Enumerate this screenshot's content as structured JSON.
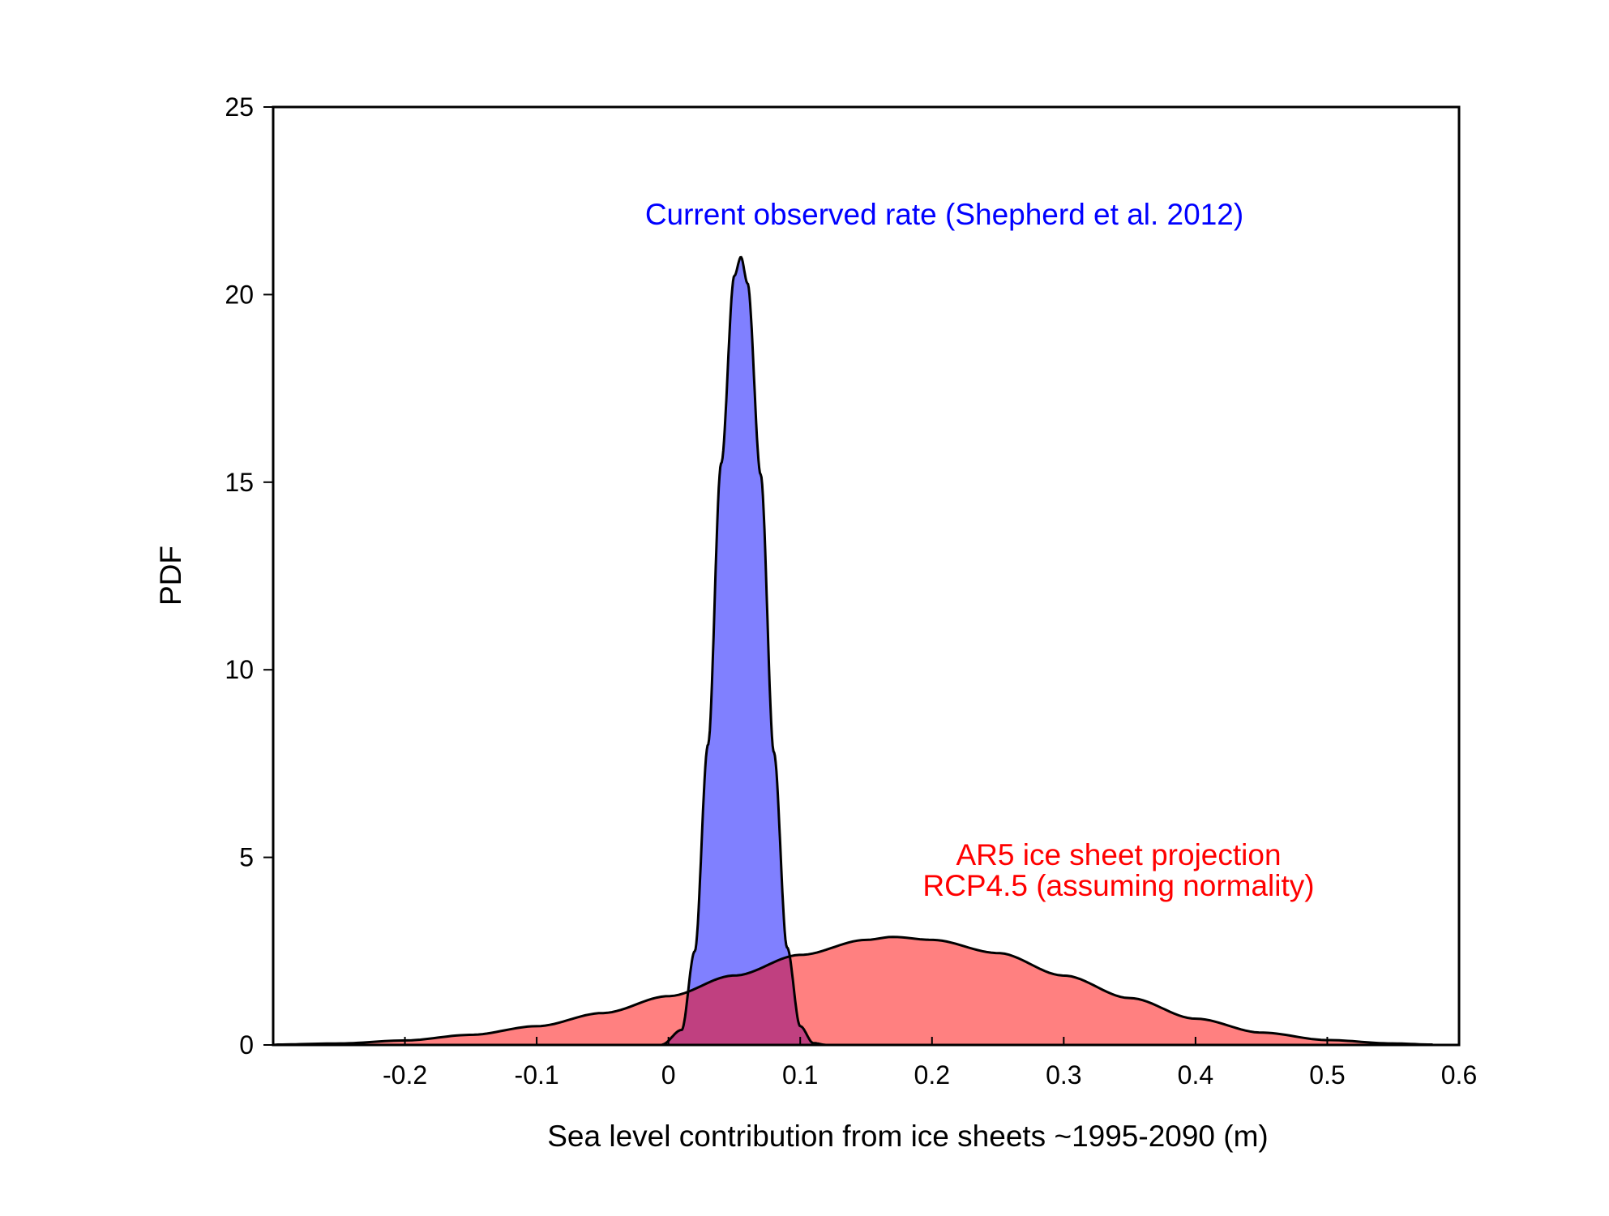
{
  "chart_data": {
    "type": "area",
    "xlabel": "Sea level contribution from ice sheets ~1995-2090 (m)",
    "ylabel": "PDF",
    "xlim": [
      -0.3,
      0.6
    ],
    "ylim": [
      0,
      25
    ],
    "xticks": [
      -0.2,
      -0.1,
      0,
      0.1,
      0.2,
      0.3,
      0.4,
      0.5,
      0.6
    ],
    "yticks": [
      0,
      5,
      10,
      15,
      20,
      25
    ],
    "x_tick_labels": [
      "-0.2",
      "-0.1",
      "0",
      "0.1",
      "0.2",
      "0.3",
      "0.4",
      "0.5",
      "0.6"
    ],
    "y_tick_labels": [
      "0",
      "5",
      "10",
      "15",
      "20",
      "25"
    ],
    "grid": false,
    "series": [
      {
        "fill_color": "#ff8080",
        "overlap_color": "#c04080",
        "x": [
          -0.3,
          -0.25,
          -0.2,
          -0.15,
          -0.1,
          -0.05,
          0,
          0.05,
          0.1,
          0.15,
          0.17,
          0.2,
          0.25,
          0.3,
          0.35,
          0.4,
          0.45,
          0.5,
          0.55,
          0.58
        ],
        "y": [
          0.01,
          0.04,
          0.12,
          0.27,
          0.5,
          0.85,
          1.3,
          1.85,
          2.4,
          2.8,
          2.88,
          2.8,
          2.45,
          1.85,
          1.25,
          0.7,
          0.33,
          0.13,
          0.04,
          0.01
        ]
      },
      {
        "fill_color": "#8080ff",
        "x": [
          -0.005,
          0.01,
          0.02,
          0.03,
          0.04,
          0.05,
          0.055,
          0.06,
          0.07,
          0.08,
          0.09,
          0.1,
          0.11,
          0.12
        ],
        "y": [
          0.01,
          0.4,
          2.5,
          8.0,
          15.5,
          20.5,
          21.0,
          20.3,
          15.2,
          7.8,
          2.6,
          0.5,
          0.05,
          0.0
        ]
      }
    ],
    "annotations": [
      {
        "text": "Current observed rate (Shepherd et al. 2012)",
        "color": "#0000ff"
      },
      {
        "text": "AR5 ice sheet projection",
        "color": "#ff0000"
      },
      {
        "text": "RCP4.5 (assuming normality)",
        "color": "#ff0000"
      }
    ]
  }
}
